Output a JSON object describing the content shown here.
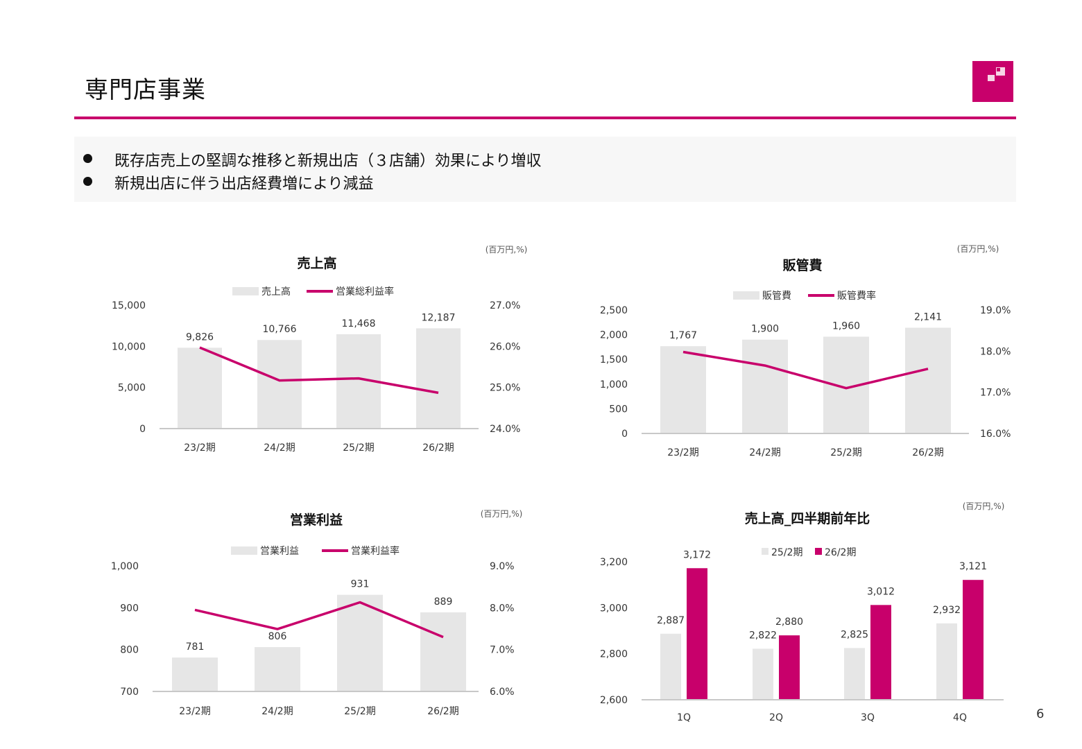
{
  "page": {
    "title": "専門店事業",
    "page_number": "6"
  },
  "summary": {
    "bullets": [
      "既存店売上の堅調な推移と新規出店（３店舗）効果により増収",
      "新規出店に伴う出店経費増により減益"
    ]
  },
  "colors": {
    "accent": "#c8006b",
    "bar_gray": "#e6e6e6",
    "axis": "#c8c8c8",
    "panel": "#f7f7f7"
  },
  "chart_data": [
    {
      "id": "sales",
      "type": "bar",
      "title": "売上高",
      "unit": "(百万円,%)",
      "categories": [
        "23/2期",
        "24/2期",
        "25/2期",
        "26/2期"
      ],
      "series": [
        {
          "name": "売上高",
          "type": "bar",
          "axis": "left",
          "values": [
            9826,
            10766,
            11468,
            12187
          ],
          "labels": [
            "9,826",
            "10,766",
            "11,468",
            "12,187"
          ]
        },
        {
          "name": "営業総利益率",
          "type": "line",
          "axis": "right",
          "values": [
            25.97,
            25.17,
            25.22,
            24.87
          ]
        }
      ],
      "left_axis": {
        "min": 0,
        "max": 15000,
        "ticks": [
          "0",
          "5,000",
          "10,000",
          "15,000"
        ]
      },
      "right_axis": {
        "min": 24.0,
        "max": 27.0,
        "ticks": [
          "24.0%",
          "25.0%",
          "26.0%",
          "27.0%"
        ]
      },
      "legend": "top-center"
    },
    {
      "id": "sga",
      "type": "bar",
      "title": "販管費",
      "unit": "(百万円,%)",
      "categories": [
        "23/2期",
        "24/2期",
        "25/2期",
        "26/2期"
      ],
      "series": [
        {
          "name": "販管費",
          "type": "bar",
          "axis": "left",
          "values": [
            1767,
            1900,
            1960,
            2141
          ],
          "labels": [
            "1,767",
            "1,900",
            "1,960",
            "2,141"
          ]
        },
        {
          "name": "販管費率",
          "type": "line",
          "axis": "right",
          "values": [
            17.98,
            17.65,
            17.1,
            17.57
          ]
        }
      ],
      "left_axis": {
        "min": 0,
        "max": 2500,
        "ticks": [
          "0",
          "500",
          "1,000",
          "1,500",
          "2,000",
          "2,500"
        ]
      },
      "right_axis": {
        "min": 16.0,
        "max": 19.0,
        "ticks": [
          "16.0%",
          "17.0%",
          "18.0%",
          "19.0%"
        ]
      },
      "legend": "top-center"
    },
    {
      "id": "op_profit",
      "type": "bar",
      "title": "営業利益",
      "unit": "(百万円,%)",
      "categories": [
        "23/2期",
        "24/2期",
        "25/2期",
        "26/2期"
      ],
      "series": [
        {
          "name": "営業利益",
          "type": "bar",
          "axis": "left",
          "values": [
            781,
            806,
            931,
            889
          ],
          "labels": [
            "781",
            "806",
            "931",
            "889"
          ]
        },
        {
          "name": "営業利益率",
          "type": "line",
          "axis": "right",
          "values": [
            7.95,
            7.49,
            8.13,
            7.3
          ]
        }
      ],
      "left_axis": {
        "min": 700,
        "max": 1000,
        "ticks": [
          "700",
          "800",
          "900",
          "1,000"
        ]
      },
      "right_axis": {
        "min": 6.0,
        "max": 9.0,
        "ticks": [
          "6.0%",
          "7.0%",
          "8.0%",
          "9.0%"
        ]
      },
      "legend": "top-center"
    },
    {
      "id": "quarterly",
      "type": "bar",
      "title": "売上高_四半期前年比",
      "unit": "(百万円,%)",
      "categories": [
        "1Q",
        "2Q",
        "3Q",
        "4Q"
      ],
      "series": [
        {
          "name": "25/2期",
          "values": [
            2887,
            2822,
            2825,
            2932
          ],
          "labels": [
            "2,887",
            "2,822",
            "2,825",
            "2,932"
          ]
        },
        {
          "name": "26/2期",
          "values": [
            3172,
            2880,
            3012,
            3121
          ],
          "labels": [
            "3,172",
            "2,880",
            "3,012",
            "3,121"
          ]
        }
      ],
      "left_axis": {
        "min": 2600,
        "max": 3200,
        "ticks": [
          "2,600",
          "2,800",
          "3,000",
          "3,200"
        ]
      },
      "legend": "top-center"
    }
  ]
}
